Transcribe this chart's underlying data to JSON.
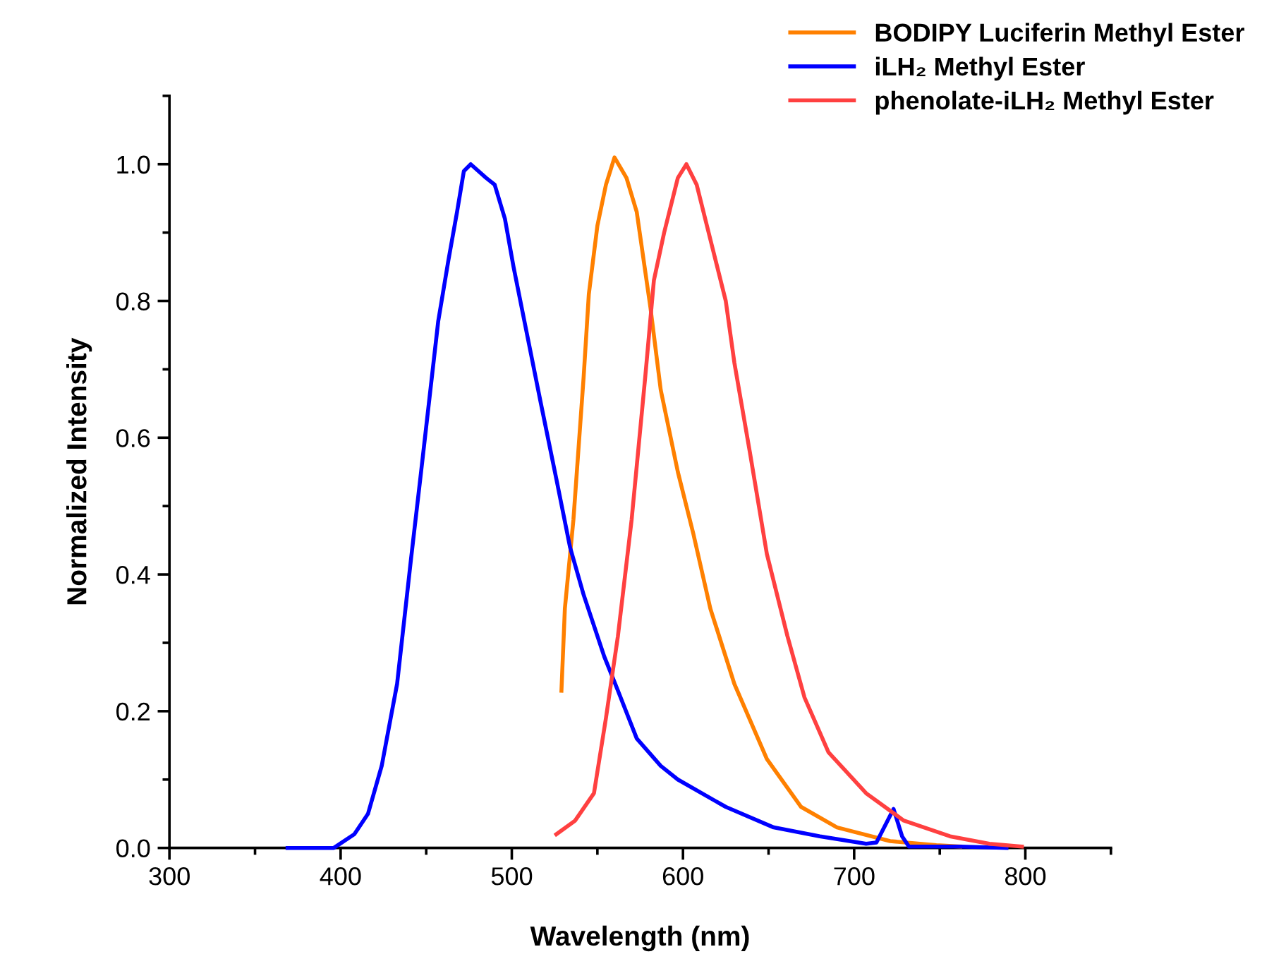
{
  "chart_data": {
    "type": "line",
    "xlabel": "Wavelength (nm)",
    "ylabel": "Normalized Intensity",
    "xlim": [
      300,
      850
    ],
    "xticks": [
      300,
      400,
      500,
      600,
      700,
      800
    ],
    "ylim": [
      0,
      1.1
    ],
    "yticks": [
      {
        "value": 0,
        "label": "0.0"
      },
      {
        "value": 0.2,
        "label": "0.2"
      },
      {
        "value": 0.4,
        "label": "0.4"
      },
      {
        "value": 0.6,
        "label": "0.6"
      },
      {
        "value": 0.8,
        "label": "0.8"
      },
      {
        "value": 1.0,
        "label": "1.0"
      }
    ],
    "legend": "top right",
    "grid": false,
    "marker": "none",
    "line_style": "solid",
    "series": [
      {
        "name": "BODIPY Luciferin Methyl Ester",
        "color": "#ff8000",
        "x": [
          529,
          531,
          536,
          540,
          542,
          545,
          550,
          555,
          560,
          567,
          573,
          581,
          587,
          597,
          606,
          616,
          630,
          649,
          669,
          690,
          721,
          748,
          762
        ],
        "values": [
          0.23,
          0.35,
          0.48,
          0.62,
          0.69,
          0.81,
          0.91,
          0.97,
          1.01,
          0.98,
          0.93,
          0.79,
          0.67,
          0.55,
          0.46,
          0.35,
          0.24,
          0.13,
          0.06,
          0.03,
          0.01,
          0.004,
          0.002
        ]
      },
      {
        "name": "iLH₂ Methyl Ester",
        "color": "#0000ff",
        "x": [
          369,
          396,
          408,
          416,
          424,
          433,
          441,
          447,
          452,
          457,
          463,
          468,
          472,
          476,
          485,
          490,
          496,
          501,
          509,
          517,
          526,
          534,
          542,
          554,
          562,
          573,
          587,
          597,
          625,
          653,
          680,
          707,
          713,
          723,
          728,
          732,
          762,
          789
        ],
        "values": [
          0.0,
          0.0,
          0.02,
          0.05,
          0.12,
          0.24,
          0.42,
          0.55,
          0.66,
          0.77,
          0.86,
          0.93,
          0.99,
          1.0,
          0.98,
          0.97,
          0.92,
          0.85,
          0.75,
          0.65,
          0.54,
          0.44,
          0.37,
          0.28,
          0.23,
          0.16,
          0.12,
          0.1,
          0.06,
          0.03,
          0.017,
          0.006,
          0.008,
          0.057,
          0.017,
          0.002,
          0.002,
          0.0
        ]
      },
      {
        "name": "phenolate-iLH₂ Methyl Ester",
        "color": "#ff4040",
        "x": [
          526,
          537,
          548,
          555,
          562,
          570,
          578,
          583,
          589,
          596,
          597,
          602,
          608,
          616,
          625,
          630,
          639,
          649,
          661,
          671,
          685,
          707,
          729,
          756,
          779,
          798
        ],
        "values": [
          0.02,
          0.04,
          0.08,
          0.19,
          0.31,
          0.48,
          0.69,
          0.83,
          0.9,
          0.97,
          0.98,
          1.0,
          0.97,
          0.89,
          0.8,
          0.71,
          0.58,
          0.43,
          0.31,
          0.22,
          0.14,
          0.08,
          0.04,
          0.017,
          0.006,
          0.002
        ]
      }
    ]
  }
}
